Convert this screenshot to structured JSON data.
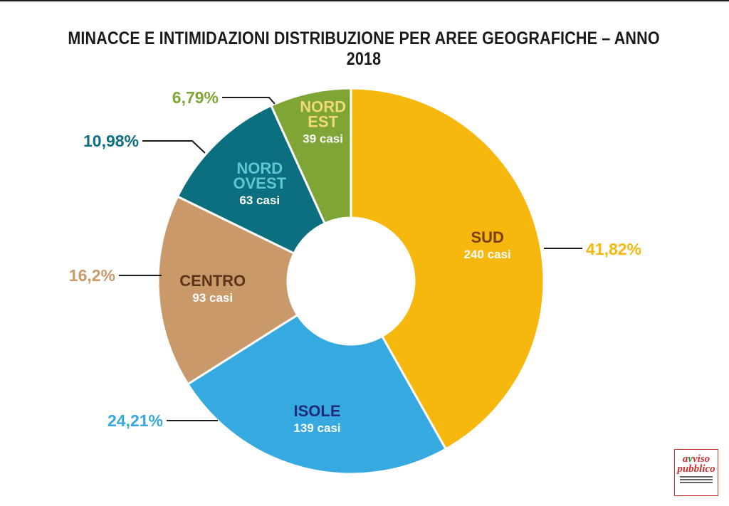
{
  "title": "MINACCE E INTIMIDAZIONI DISTRIBUZIONE PER AREE GEOGRAFICHE – ANNO 2018",
  "chart_data": {
    "type": "pie",
    "donut": true,
    "title": "MINACCE E INTIMIDAZIONI DISTRIBUZIONE PER AREE GEOGRAFICHE – ANNO 2018",
    "slices": [
      {
        "name_lines": [
          "SUD"
        ],
        "cases_label": "240 casi",
        "cases": 240,
        "percent_label": "41,82%",
        "percent": 41.82,
        "color": "#f6b80e",
        "name_color": "#7a3d12"
      },
      {
        "name_lines": [
          "ISOLE"
        ],
        "cases_label": "139 casi",
        "cases": 139,
        "percent_label": "24,21%",
        "percent": 24.21,
        "color": "#36a9e0",
        "name_color": "#1f2a7a"
      },
      {
        "name_lines": [
          "CENTRO"
        ],
        "cases_label": "93 casi",
        "cases": 93,
        "percent_label": "16,2%",
        "percent": 16.2,
        "color": "#c9996a",
        "name_color": "#5a3318"
      },
      {
        "name_lines": [
          "NORD",
          "OVEST"
        ],
        "cases_label": "63 casi",
        "cases": 63,
        "percent_label": "10,98%",
        "percent": 10.98,
        "color": "#0b6f80",
        "name_color": "#5fc6d2"
      },
      {
        "name_lines": [
          "NORD",
          "EST"
        ],
        "cases_label": "39 casi",
        "cases": 39,
        "percent_label": "6,79%",
        "percent": 6.79,
        "color": "#7ea536",
        "name_color": "#f1da74"
      }
    ],
    "percent_colors": [
      "#f6b80e",
      "#36a9e0",
      "#c9996a",
      "#0b6f80",
      "#7ea536"
    ]
  },
  "logo": {
    "text_top_1": "a",
    "text_top_v": "v",
    "text_top_2": "viso",
    "text_bottom": "pubblico"
  }
}
